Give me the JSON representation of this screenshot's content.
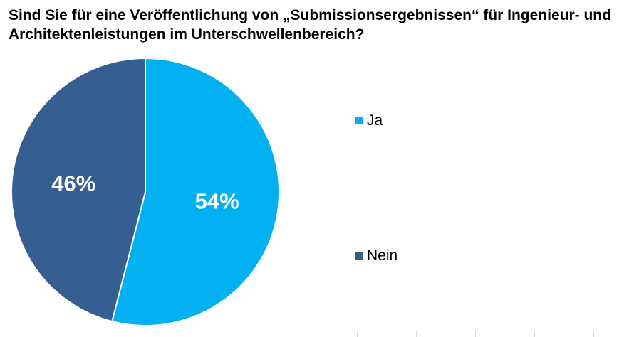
{
  "chart_data": {
    "type": "pie",
    "title": "Sind Sie für eine Veröffentlichung von „Submissionsergebnissen“ für Ingenieur- und Architektenleistungen im Unterschwellenbereich?",
    "slices": [
      {
        "label": "Ja",
        "value": 54,
        "display": "54%",
        "color": "#00b0f0"
      },
      {
        "label": "Nein",
        "value": 46,
        "display": "46%",
        "color": "#355f91"
      }
    ],
    "start_angle_deg": 0,
    "direction": "clockwise",
    "legend_position": "right",
    "label_color": "#ffffff"
  }
}
